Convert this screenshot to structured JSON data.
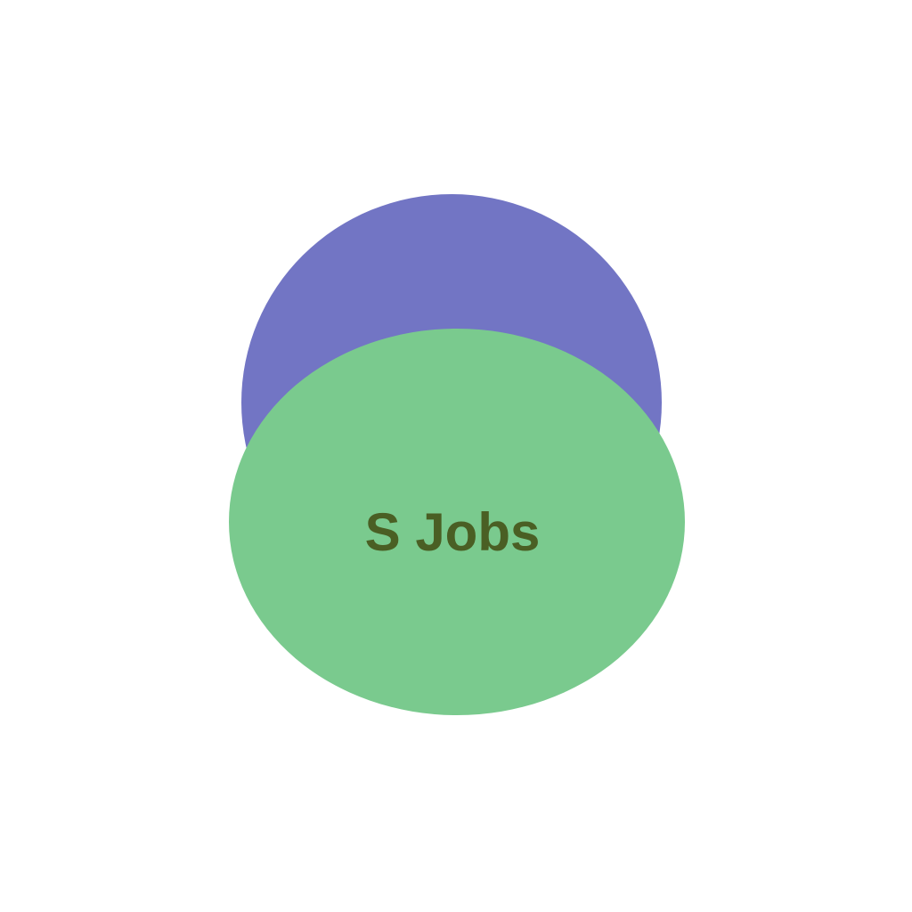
{
  "logo": {
    "text": "S Jobs",
    "colors": {
      "background": "#ffffff",
      "back_circle": "#7275c4",
      "front_ellipse": "#7aca8e",
      "text": "#4a5f24"
    }
  }
}
